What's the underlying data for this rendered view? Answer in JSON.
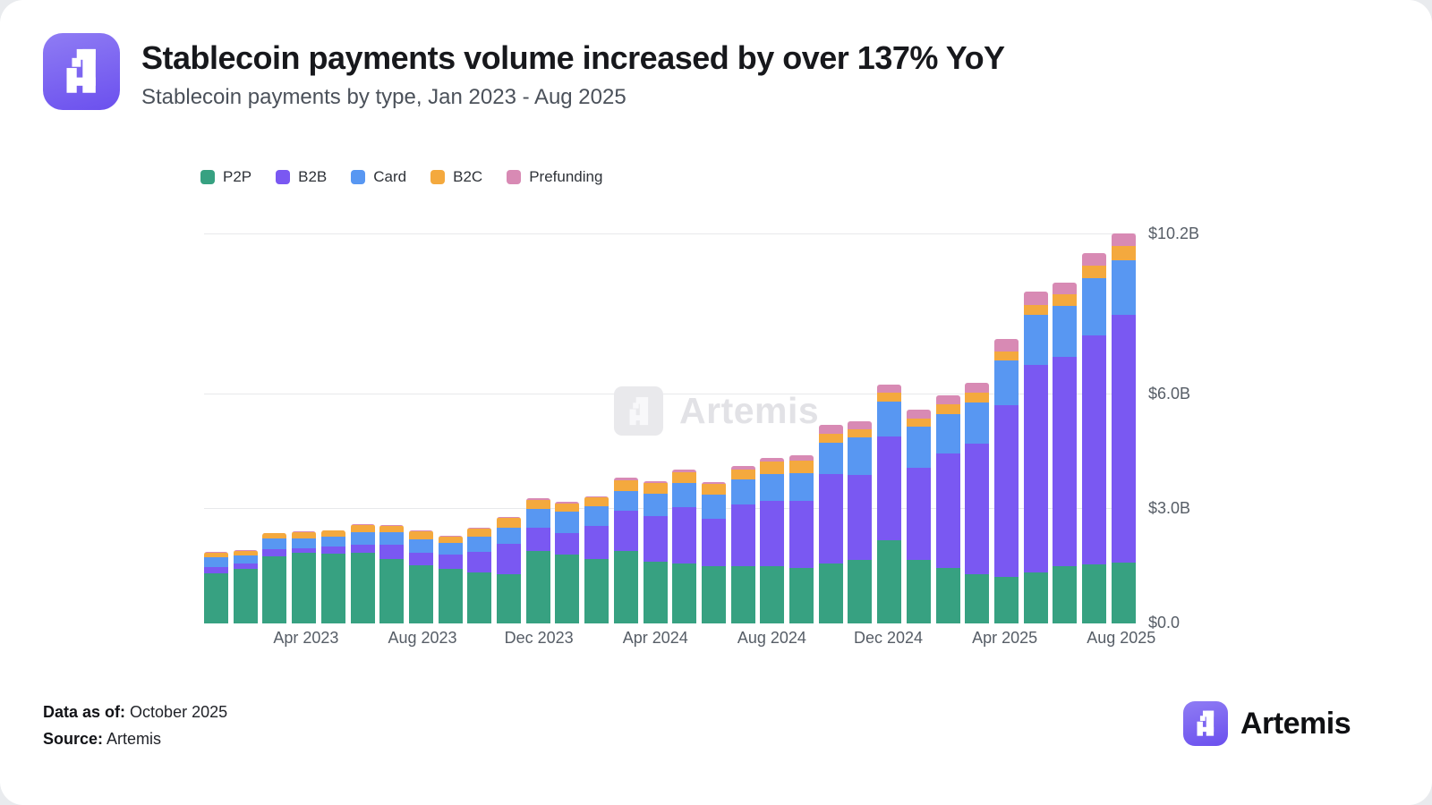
{
  "header": {
    "title": "Stablecoin payments volume increased by over 137% YoY",
    "subtitle": "Stablecoin payments by type, Jan 2023 - Aug 2025"
  },
  "legend": [
    {
      "label": "P2P",
      "color": "#37a181"
    },
    {
      "label": "B2B",
      "color": "#7a58f2"
    },
    {
      "label": "Card",
      "color": "#5897f2"
    },
    {
      "label": "B2C",
      "color": "#f4a93e"
    },
    {
      "label": "Prefunding",
      "color": "#d88ab4"
    }
  ],
  "chart_data": {
    "type": "bar",
    "stacked": true,
    "title": "Stablecoin payments by type, Jan 2023 - Aug 2025",
    "unit": "USD billions",
    "ylim": [
      0,
      10.2
    ],
    "grid": true,
    "legend_position": "top-left",
    "x": [
      "Jan 2023",
      "Feb 2023",
      "Mar 2023",
      "Apr 2023",
      "May 2023",
      "Jun 2023",
      "Jul 2023",
      "Aug 2023",
      "Sep 2023",
      "Oct 2023",
      "Nov 2023",
      "Dec 2023",
      "Jan 2024",
      "Feb 2024",
      "Mar 2024",
      "Apr 2024",
      "May 2024",
      "Jun 2024",
      "Jul 2024",
      "Aug 2024",
      "Sep 2024",
      "Oct 2024",
      "Nov 2024",
      "Dec 2024",
      "Jan 2025",
      "Feb 2025",
      "Mar 2025",
      "Apr 2025",
      "May 2025",
      "Jun 2025",
      "Jul 2025",
      "Aug 2025"
    ],
    "series": [
      {
        "name": "P2P",
        "color": "#37a181",
        "values": [
          1.32,
          1.43,
          1.76,
          1.85,
          1.84,
          1.85,
          1.7,
          1.53,
          1.42,
          1.33,
          1.28,
          1.9,
          1.8,
          1.7,
          1.9,
          1.63,
          1.56,
          1.49,
          1.49,
          1.49,
          1.45,
          1.56,
          1.66,
          2.18,
          1.66,
          1.45,
          1.29,
          1.22,
          1.34,
          1.51,
          1.54,
          1.6
        ]
      },
      {
        "name": "B2B",
        "color": "#7a58f2",
        "values": [
          0.15,
          0.14,
          0.19,
          0.12,
          0.17,
          0.22,
          0.36,
          0.33,
          0.38,
          0.54,
          0.8,
          0.62,
          0.58,
          0.86,
          1.05,
          1.19,
          1.49,
          1.26,
          1.63,
          1.72,
          1.76,
          2.36,
          2.24,
          2.73,
          2.43,
          3.0,
          3.42,
          4.51,
          5.44,
          5.47,
          6.02,
          6.5
        ]
      },
      {
        "name": "Card",
        "color": "#5897f2",
        "values": [
          0.26,
          0.21,
          0.28,
          0.26,
          0.26,
          0.33,
          0.33,
          0.35,
          0.3,
          0.4,
          0.42,
          0.49,
          0.55,
          0.51,
          0.53,
          0.59,
          0.63,
          0.63,
          0.66,
          0.7,
          0.74,
          0.82,
          0.97,
          0.9,
          1.07,
          1.03,
          1.08,
          1.17,
          1.31,
          1.34,
          1.48,
          1.43
        ]
      },
      {
        "name": "B2C",
        "color": "#f4a93e",
        "values": [
          0.12,
          0.12,
          0.13,
          0.17,
          0.16,
          0.19,
          0.17,
          0.21,
          0.17,
          0.22,
          0.26,
          0.23,
          0.22,
          0.23,
          0.28,
          0.28,
          0.28,
          0.28,
          0.26,
          0.33,
          0.33,
          0.23,
          0.22,
          0.24,
          0.22,
          0.26,
          0.27,
          0.23,
          0.26,
          0.31,
          0.35,
          0.36
        ]
      },
      {
        "name": "Prefunding",
        "color": "#d88ab4",
        "values": [
          0.02,
          0.02,
          0.02,
          0.02,
          0.02,
          0.02,
          0.02,
          0.02,
          0.02,
          0.03,
          0.03,
          0.04,
          0.04,
          0.04,
          0.06,
          0.05,
          0.07,
          0.05,
          0.1,
          0.11,
          0.12,
          0.23,
          0.22,
          0.21,
          0.22,
          0.24,
          0.26,
          0.33,
          0.34,
          0.31,
          0.33,
          0.33
        ]
      }
    ],
    "y_ticks": [
      {
        "value": 0,
        "label": "$0.0"
      },
      {
        "value": 3,
        "label": "$3.0B"
      },
      {
        "value": 6,
        "label": "$6.0B"
      },
      {
        "value": 10.2,
        "label": "$10.2B"
      }
    ],
    "x_tick_labels": [
      "Apr 2023",
      "Aug 2023",
      "Dec 2023",
      "Apr 2024",
      "Aug 2024",
      "Dec 2024",
      "Apr 2025",
      "Aug 2025"
    ],
    "x_tick_every": 4,
    "x_tick_start_index": 3
  },
  "watermark": {
    "text": "Artemis"
  },
  "footer": {
    "data_as_of_label": "Data as of:",
    "data_as_of_value": "October 2025",
    "source_label": "Source:",
    "source_value": "Artemis",
    "brand": "Artemis"
  }
}
